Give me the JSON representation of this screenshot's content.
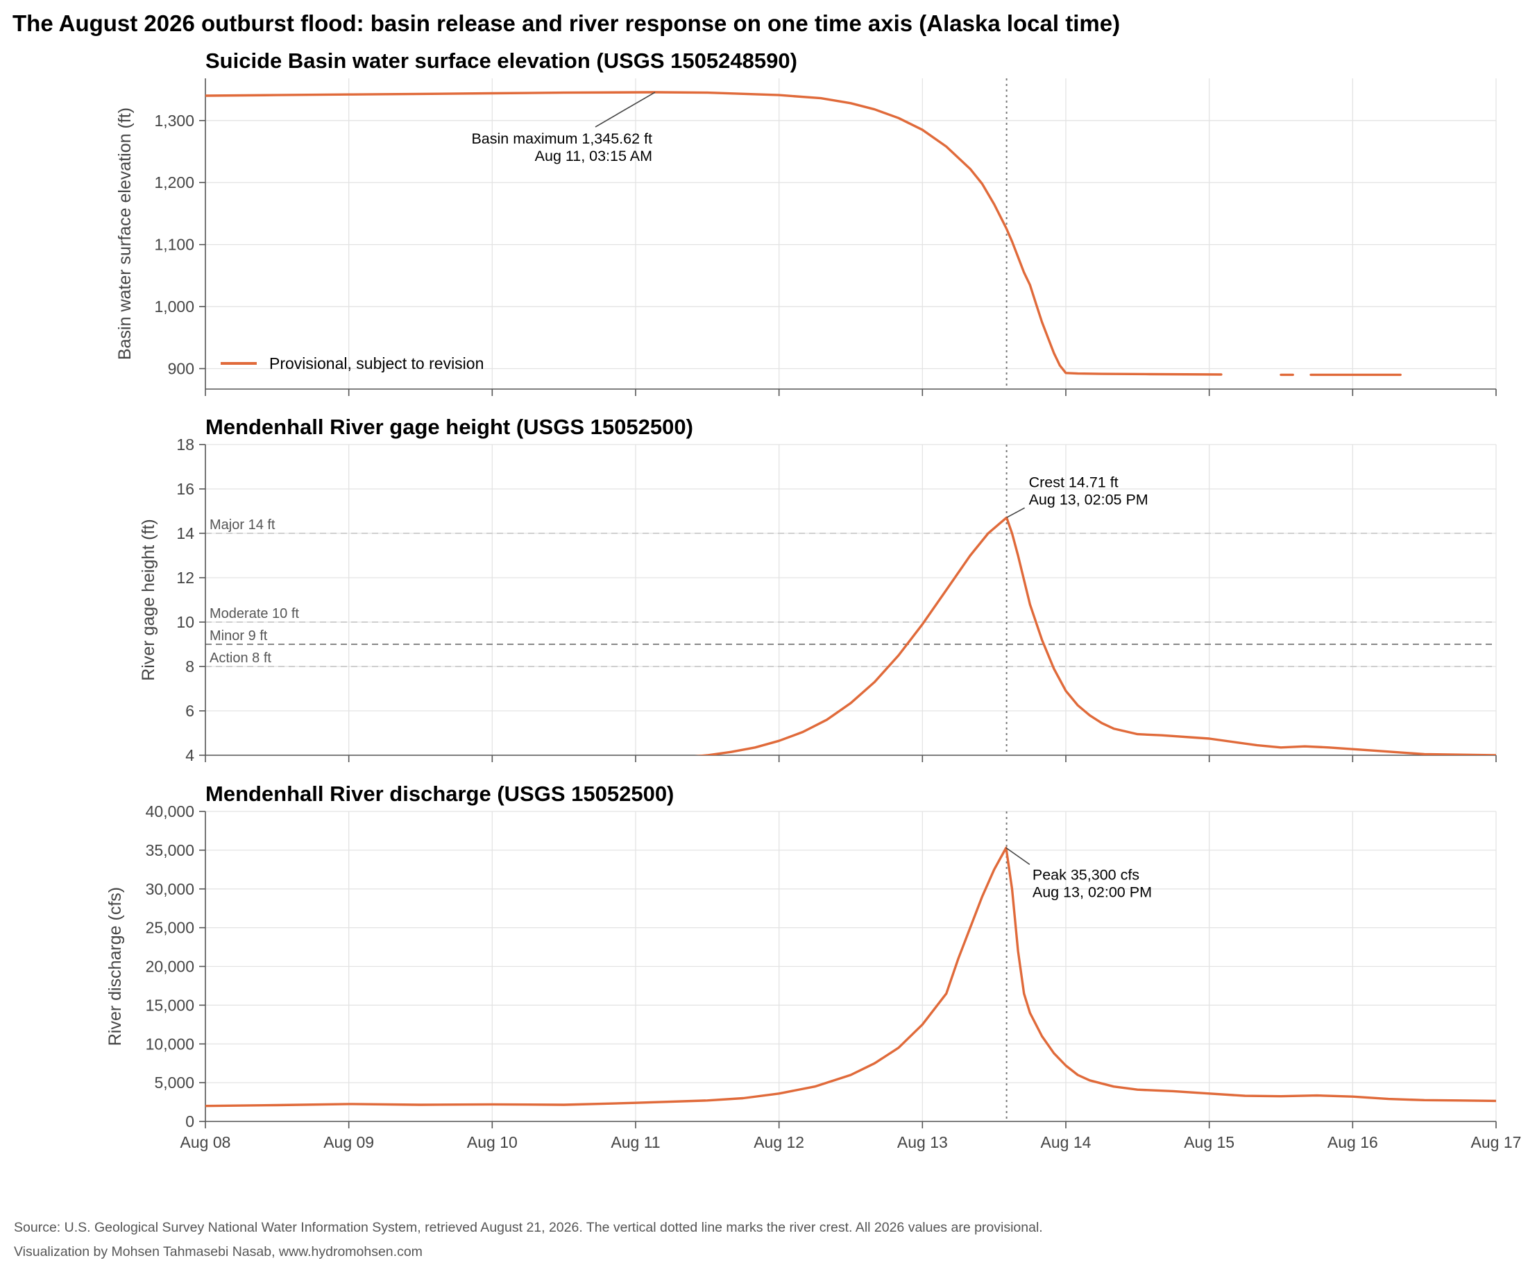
{
  "figure": {
    "title": "The August 2026 outburst flood: basin release and river response on one time axis (Alaska local time)",
    "footer_source": "Source: U.S. Geological Survey National Water Information System, retrieved August 21, 2026. The vertical dotted line marks the river crest. All 2026 values are provisional.",
    "footer_credit": "Visualization by Mohsen Tahmasebi Nasab, www.hydromohsen.com",
    "series_color": "#e06a3a",
    "crest_time_hours": 134.083
  },
  "chart_data": [
    {
      "type": "line",
      "title": "Suicide Basin water surface elevation (USGS 1505248590)",
      "ylabel": "Basin water surface elevation (ft)",
      "xlabel": "",
      "x_unit": "hours since Aug 08 00:00",
      "x_ticks": [
        "Aug 08",
        "Aug 09",
        "Aug 10",
        "Aug 11",
        "Aug 12",
        "Aug 13",
        "Aug 14",
        "Aug 15",
        "Aug 16",
        "Aug 17"
      ],
      "xlim": [
        0,
        216
      ],
      "ylim": [
        867,
        1368
      ],
      "y_ticks": [
        900,
        1000,
        1100,
        1200,
        1300
      ],
      "y_tick_labels": [
        "900",
        "1,000",
        "1,100",
        "1,200",
        "1,300"
      ],
      "legend": {
        "location": "lower-left",
        "entries": [
          "Provisional, subject to revision"
        ]
      },
      "series": [
        {
          "name": "Provisional, subject to revision",
          "segments": [
            [
              [
                0,
                1340
              ],
              [
                12,
                1341
              ],
              [
                24,
                1342
              ],
              [
                36,
                1343
              ],
              [
                48,
                1344
              ],
              [
                60,
                1345
              ],
              [
                75.25,
                1345.62
              ],
              [
                84,
                1345
              ],
              [
                96,
                1341
              ],
              [
                103,
                1336
              ],
              [
                108,
                1328
              ],
              [
                112,
                1318
              ],
              [
                116,
                1304
              ],
              [
                120,
                1285
              ],
              [
                124,
                1258
              ],
              [
                128,
                1222
              ],
              [
                130,
                1198
              ],
              [
                132,
                1165
              ],
              [
                134,
                1127
              ],
              [
                135,
                1105
              ],
              [
                136,
                1080
              ],
              [
                137,
                1055
              ],
              [
                138,
                1035
              ],
              [
                139,
                1005
              ],
              [
                140,
                975
              ],
              [
                141,
                950
              ],
              [
                142,
                925
              ],
              [
                143,
                905
              ],
              [
                144,
                893
              ],
              [
                146,
                892
              ],
              [
                150,
                891.5
              ],
              [
                158,
                891
              ],
              [
                170,
                890.5
              ]
            ],
            [
              [
                180,
                890
              ],
              [
                182,
                890
              ]
            ],
            [
              [
                185,
                890
              ],
              [
                200,
                890
              ]
            ]
          ]
        }
      ],
      "annotations": [
        {
          "text": "Basin maximum 1,345.62 ft",
          "text2": "Aug 11, 03:15 AM",
          "x": 75.25,
          "y": 1345.62
        }
      ]
    },
    {
      "type": "line",
      "title": "Mendenhall River gage height (USGS 15052500)",
      "ylabel": "River gage height (ft)",
      "xlabel": "",
      "x_unit": "hours since Aug 08 00:00",
      "x_ticks": [
        "Aug 08",
        "Aug 09",
        "Aug 10",
        "Aug 11",
        "Aug 12",
        "Aug 13",
        "Aug 14",
        "Aug 15",
        "Aug 16",
        "Aug 17"
      ],
      "xlim": [
        0,
        216
      ],
      "ylim": [
        4,
        18
      ],
      "y_ticks": [
        4,
        6,
        8,
        10,
        12,
        14,
        16,
        18
      ],
      "y_tick_labels": [
        "4",
        "6",
        "8",
        "10",
        "12",
        "14",
        "16",
        "18"
      ],
      "thresholds": [
        {
          "label": "Major 14 ft",
          "value": 14
        },
        {
          "label": "Moderate 10 ft",
          "value": 10
        },
        {
          "label": "Minor 9 ft",
          "value": 9
        },
        {
          "label": "Action 8 ft",
          "value": 8
        }
      ],
      "series": [
        {
          "name": "",
          "segments": [
            [
              [
                0,
                3.5
              ],
              [
                24,
                3.55
              ],
              [
                48,
                3.6
              ],
              [
                72,
                3.7
              ],
              [
                80,
                3.9
              ],
              [
                84,
                4.0
              ],
              [
                88,
                4.15
              ],
              [
                92,
                4.35
              ],
              [
                96,
                4.65
              ],
              [
                100,
                5.05
              ],
              [
                104,
                5.6
              ],
              [
                108,
                6.35
              ],
              [
                112,
                7.3
              ],
              [
                116,
                8.5
              ],
              [
                120,
                9.9
              ],
              [
                124,
                11.45
              ],
              [
                128,
                13.0
              ],
              [
                131,
                14.0
              ],
              [
                134.083,
                14.71
              ],
              [
                135,
                14.0
              ],
              [
                136,
                13.0
              ],
              [
                137,
                11.9
              ],
              [
                138,
                10.8
              ],
              [
                140,
                9.2
              ],
              [
                142,
                7.9
              ],
              [
                144,
                6.9
              ],
              [
                146,
                6.25
              ],
              [
                148,
                5.8
              ],
              [
                150,
                5.45
              ],
              [
                152,
                5.2
              ],
              [
                156,
                4.95
              ],
              [
                160,
                4.9
              ],
              [
                168,
                4.75
              ],
              [
                176,
                4.45
              ],
              [
                180,
                4.35
              ],
              [
                184,
                4.4
              ],
              [
                188,
                4.35
              ],
              [
                196,
                4.2
              ],
              [
                204,
                4.05
              ],
              [
                216,
                4.0
              ]
            ]
          ]
        }
      ],
      "annotations": [
        {
          "text": "Crest 14.71 ft",
          "text2": "Aug 13, 02:05 PM",
          "x": 134.083,
          "y": 14.71
        }
      ]
    },
    {
      "type": "line",
      "title": "Mendenhall River discharge (USGS 15052500)",
      "ylabel": "River discharge (cfs)",
      "xlabel": "",
      "x_unit": "hours since Aug 08 00:00",
      "x_ticks": [
        "Aug 08",
        "Aug 09",
        "Aug 10",
        "Aug 11",
        "Aug 12",
        "Aug 13",
        "Aug 14",
        "Aug 15",
        "Aug 16",
        "Aug 17"
      ],
      "xlim": [
        0,
        216
      ],
      "ylim": [
        0,
        40000
      ],
      "y_ticks": [
        0,
        5000,
        10000,
        15000,
        20000,
        25000,
        30000,
        35000,
        40000
      ],
      "y_tick_labels": [
        "0",
        "5,000",
        "10,000",
        "15,000",
        "20,000",
        "25,000",
        "30,000",
        "35,000",
        "40,000"
      ],
      "series": [
        {
          "name": "",
          "segments": [
            [
              [
                0,
                2000
              ],
              [
                12,
                2100
              ],
              [
                24,
                2250
              ],
              [
                36,
                2150
              ],
              [
                48,
                2200
              ],
              [
                60,
                2150
              ],
              [
                72,
                2400
              ],
              [
                84,
                2700
              ],
              [
                90,
                3000
              ],
              [
                96,
                3600
              ],
              [
                102,
                4500
              ],
              [
                108,
                6000
              ],
              [
                112,
                7500
              ],
              [
                116,
                9500
              ],
              [
                120,
                12500
              ],
              [
                124,
                16500
              ],
              [
                126,
                21000
              ],
              [
                128,
                25000
              ],
              [
                130,
                29000
              ],
              [
                132,
                32500
              ],
              [
                134,
                35300
              ],
              [
                135,
                30000
              ],
              [
                136,
                22000
              ],
              [
                137,
                16500
              ],
              [
                138,
                14000
              ],
              [
                140,
                11000
              ],
              [
                142,
                8800
              ],
              [
                144,
                7200
              ],
              [
                146,
                6000
              ],
              [
                148,
                5300
              ],
              [
                152,
                4500
              ],
              [
                156,
                4100
              ],
              [
                162,
                3900
              ],
              [
                168,
                3600
              ],
              [
                174,
                3300
              ],
              [
                180,
                3250
              ],
              [
                186,
                3350
              ],
              [
                192,
                3200
              ],
              [
                198,
                2900
              ],
              [
                204,
                2750
              ],
              [
                210,
                2700
              ],
              [
                216,
                2650
              ]
            ]
          ]
        }
      ],
      "annotations": [
        {
          "text": "Peak 35,300 cfs",
          "text2": "Aug 13, 02:00 PM",
          "x": 134.0,
          "y": 35300
        }
      ]
    }
  ]
}
